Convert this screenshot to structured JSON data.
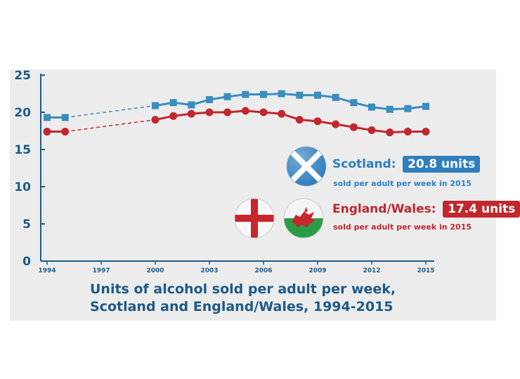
{
  "chart_data": {
    "type": "line",
    "title": "Units of alcohol sold per adult per week, Scotland and England/Wales, 1994-2015",
    "title_lines": [
      "Units of alcohol sold per adult per week,",
      "Scotland and England/Wales, 1994-2015"
    ],
    "xlabel": "",
    "ylabel": "",
    "ylim": [
      0,
      25
    ],
    "xlim": [
      1994,
      2015
    ],
    "y_ticks": [
      "0",
      "5",
      "10",
      "15",
      "20",
      "25"
    ],
    "x_ticks": [
      "1994",
      "1997",
      "2000",
      "2003",
      "2006",
      "2009",
      "2012",
      "2015"
    ],
    "x": [
      1994,
      1995,
      2000,
      2001,
      2002,
      2003,
      2004,
      2005,
      2006,
      2007,
      2008,
      2009,
      2010,
      2011,
      2012,
      2013,
      2014,
      2015
    ],
    "series": [
      {
        "name": "Scotland",
        "color": "#3a8dbd",
        "marker": "square",
        "values": [
          19.3,
          19.3,
          20.9,
          21.3,
          21.0,
          21.7,
          22.1,
          22.4,
          22.4,
          22.5,
          22.3,
          22.3,
          22.0,
          21.3,
          20.7,
          20.4,
          20.5,
          20.8
        ]
      },
      {
        "name": "England/Wales",
        "color": "#c1272d",
        "marker": "circle",
        "values": [
          17.4,
          17.4,
          19.0,
          19.5,
          19.8,
          20.0,
          20.0,
          20.2,
          20.0,
          19.8,
          19.0,
          18.8,
          18.4,
          18.0,
          17.6,
          17.3,
          17.4,
          17.4
        ]
      }
    ],
    "dashed_segment": [
      1995,
      2000
    ],
    "legend": [
      {
        "label": "Scotland:",
        "value": "20.8 units",
        "sub": "sold per adult per week in 2015",
        "color": "#3a8dbd"
      },
      {
        "label": "England/Wales:",
        "value": "17.4 units",
        "sub": "sold per adult per week in 2015",
        "color": "#c1272d"
      }
    ]
  },
  "icons": {
    "scotland_flag": "saltire-flag-icon",
    "england_flag": "st-george-cross-flag-icon",
    "wales_flag": "welsh-dragon-flag-icon"
  }
}
